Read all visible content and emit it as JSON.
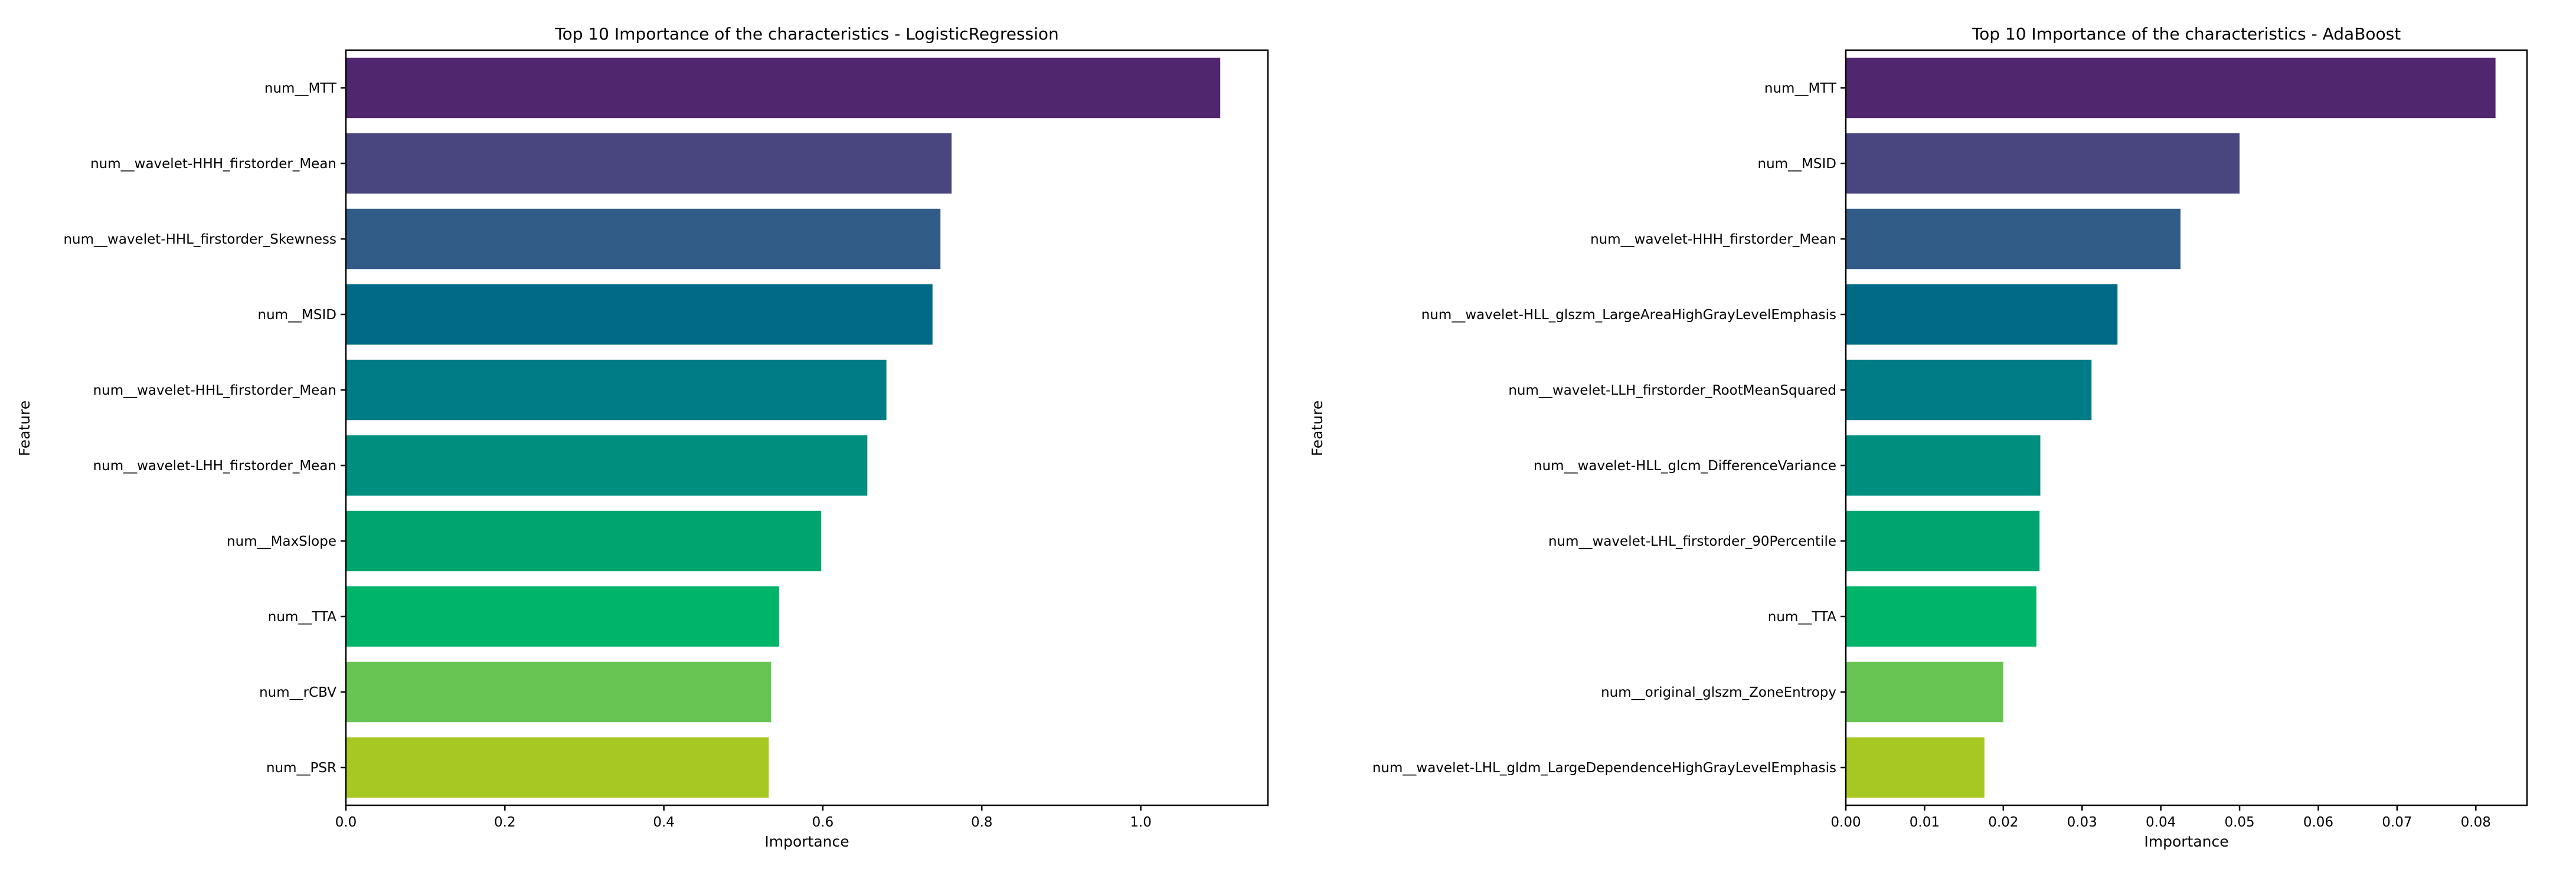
{
  "chart_data": [
    {
      "type": "bar",
      "orientation": "horizontal",
      "title": "Top 10 Importance of the characteristics - LogisticRegression",
      "xlabel": "Importance",
      "ylabel": "Feature",
      "categories": [
        "num__MTT",
        "num__wavelet-HHH_firstorder_Mean",
        "num__wavelet-HHL_firstorder_Skewness",
        "num__MSID",
        "num__wavelet-HHL_firstorder_Mean",
        "num__wavelet-LHH_firstorder_Mean",
        "num__MaxSlope",
        "num__TTA",
        "num__rCBV",
        "num__PSR"
      ],
      "values": [
        1.1,
        0.762,
        0.748,
        0.738,
        0.68,
        0.656,
        0.598,
        0.545,
        0.535,
        0.532
      ],
      "xlim": [
        0,
        1.16
      ],
      "xticks": [
        0.0,
        0.2,
        0.4,
        0.6,
        0.8,
        1.0
      ],
      "xtick_labels": [
        "0.0",
        "0.2",
        "0.4",
        "0.6",
        "0.8",
        "1.0"
      ],
      "grid": false,
      "colors": [
        "#50266e",
        "#49457f",
        "#325c88",
        "#006a87",
        "#007c86",
        "#008e7f",
        "#00a46f",
        "#00b56a",
        "#68c453",
        "#a7c823"
      ]
    },
    {
      "type": "bar",
      "orientation": "horizontal",
      "title": "Top 10 Importance of the characteristics - AdaBoost",
      "xlabel": "Importance",
      "ylabel": "Feature",
      "categories": [
        "num__MTT",
        "num__MSID",
        "num__wavelet-HHH_firstorder_Mean",
        "num__wavelet-HLL_glszm_LargeAreaHighGrayLevelEmphasis",
        "num__wavelet-LLH_firstorder_RootMeanSquared",
        "num__wavelet-HLL_glcm_DifferenceVariance",
        "num__wavelet-LHL_firstorder_90Percentile",
        "num__TTA",
        "num__original_glszm_ZoneEntropy",
        "num__wavelet-LHL_gldm_LargeDependenceHighGrayLevelEmphasis"
      ],
      "values": [
        0.0825,
        0.05,
        0.0425,
        0.0345,
        0.0312,
        0.0247,
        0.0246,
        0.0242,
        0.02,
        0.0176
      ],
      "xlim": [
        0,
        0.0865
      ],
      "xticks": [
        0.0,
        0.01,
        0.02,
        0.03,
        0.04,
        0.05,
        0.06,
        0.07,
        0.08
      ],
      "xtick_labels": [
        "0.00",
        "0.01",
        "0.02",
        "0.03",
        "0.04",
        "0.05",
        "0.06",
        "0.07",
        "0.08"
      ],
      "grid": false,
      "colors": [
        "#50266e",
        "#49457f",
        "#325c88",
        "#006a87",
        "#007c86",
        "#008e7f",
        "#00a46f",
        "#00b56a",
        "#68c453",
        "#a7c823"
      ]
    }
  ]
}
